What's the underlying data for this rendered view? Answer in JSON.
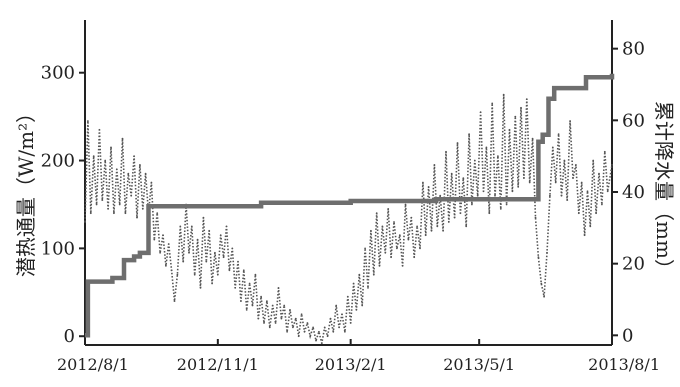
{
  "chart_data": {
    "type": "line",
    "xlabel": "",
    "x_ticks": [
      "2012/8/1",
      "2012/11/1",
      "2013/2/1",
      "2013/5/1",
      "2013/8/1"
    ],
    "x_range": [
      "2012-08-01",
      "2013-08-01"
    ],
    "ylabel_left": "潜热通量（W/m²）",
    "ylim_left": [
      -10,
      360
    ],
    "yticks_left": [
      0,
      100,
      200,
      300
    ],
    "ylabel_right": "累计降水量（mm）",
    "ylim_right": [
      -2.7,
      88
    ],
    "yticks_right": [
      0,
      20,
      40,
      60,
      80
    ],
    "colors": {
      "latent_heat": "#555555",
      "precip": "#6e6e6e",
      "axis": "#222222"
    },
    "series": [
      {
        "name": "",
        "axis": "left",
        "style": "dotted",
        "points": [
          [
            "2012-08-01",
            130
          ],
          [
            "2012-08-03",
            245
          ],
          [
            "2012-08-05",
            140
          ],
          [
            "2012-08-07",
            205
          ],
          [
            "2012-08-09",
            150
          ],
          [
            "2012-08-11",
            235
          ],
          [
            "2012-08-13",
            155
          ],
          [
            "2012-08-15",
            200
          ],
          [
            "2012-08-17",
            145
          ],
          [
            "2012-08-19",
            215
          ],
          [
            "2012-08-21",
            140
          ],
          [
            "2012-08-23",
            190
          ],
          [
            "2012-08-25",
            150
          ],
          [
            "2012-08-27",
            225
          ],
          [
            "2012-08-29",
            140
          ],
          [
            "2012-08-31",
            185
          ],
          [
            "2012-09-02",
            160
          ],
          [
            "2012-09-04",
            205
          ],
          [
            "2012-09-06",
            135
          ],
          [
            "2012-09-08",
            195
          ],
          [
            "2012-09-10",
            145
          ],
          [
            "2012-09-12",
            185
          ],
          [
            "2012-09-14",
            140
          ],
          [
            "2012-09-16",
            175
          ],
          [
            "2012-09-18",
            110
          ],
          [
            "2012-09-20",
            140
          ],
          [
            "2012-09-22",
            95
          ],
          [
            "2012-09-24",
            115
          ],
          [
            "2012-09-26",
            80
          ],
          [
            "2012-09-28",
            105
          ],
          [
            "2012-09-30",
            75
          ],
          [
            "2012-10-02",
            40
          ],
          [
            "2012-10-04",
            70
          ],
          [
            "2012-10-06",
            125
          ],
          [
            "2012-10-08",
            85
          ],
          [
            "2012-10-10",
            150
          ],
          [
            "2012-10-12",
            95
          ],
          [
            "2012-10-14",
            125
          ],
          [
            "2012-10-16",
            70
          ],
          [
            "2012-10-18",
            110
          ],
          [
            "2012-10-20",
            55
          ],
          [
            "2012-10-22",
            135
          ],
          [
            "2012-10-24",
            85
          ],
          [
            "2012-10-26",
            120
          ],
          [
            "2012-10-28",
            60
          ],
          [
            "2012-10-30",
            95
          ],
          [
            "2012-11-01",
            70
          ],
          [
            "2012-11-03",
            115
          ],
          [
            "2012-11-05",
            90
          ],
          [
            "2012-11-07",
            125
          ],
          [
            "2012-11-09",
            75
          ],
          [
            "2012-11-11",
            100
          ],
          [
            "2012-11-13",
            55
          ],
          [
            "2012-11-15",
            85
          ],
          [
            "2012-11-17",
            40
          ],
          [
            "2012-11-19",
            75
          ],
          [
            "2012-11-21",
            30
          ],
          [
            "2012-11-23",
            60
          ],
          [
            "2012-11-25",
            35
          ],
          [
            "2012-11-27",
            70
          ],
          [
            "2012-11-29",
            20
          ],
          [
            "2012-12-01",
            45
          ],
          [
            "2012-12-03",
            15
          ],
          [
            "2012-12-05",
            40
          ],
          [
            "2012-12-07",
            10
          ],
          [
            "2012-12-09",
            35
          ],
          [
            "2012-12-11",
            15
          ],
          [
            "2012-12-13",
            55
          ],
          [
            "2012-12-15",
            20
          ],
          [
            "2012-12-17",
            35
          ],
          [
            "2012-12-19",
            5
          ],
          [
            "2012-12-21",
            30
          ],
          [
            "2012-12-23",
            10
          ],
          [
            "2012-12-25",
            20
          ],
          [
            "2012-12-27",
            0
          ],
          [
            "2012-12-29",
            25
          ],
          [
            "2012-12-31",
            5
          ],
          [
            "2013-01-02",
            15
          ],
          [
            "2013-01-04",
            0
          ],
          [
            "2013-01-06",
            10
          ],
          [
            "2013-01-08",
            -5
          ],
          [
            "2013-01-10",
            5
          ],
          [
            "2013-01-12",
            -8
          ],
          [
            "2013-01-14",
            10
          ],
          [
            "2013-01-16",
            0
          ],
          [
            "2013-01-18",
            20
          ],
          [
            "2013-01-20",
            5
          ],
          [
            "2013-01-22",
            35
          ],
          [
            "2013-01-24",
            10
          ],
          [
            "2013-01-26",
            25
          ],
          [
            "2013-01-28",
            5
          ],
          [
            "2013-01-30",
            45
          ],
          [
            "2013-02-01",
            15
          ],
          [
            "2013-02-03",
            60
          ],
          [
            "2013-02-05",
            30
          ],
          [
            "2013-02-07",
            70
          ],
          [
            "2013-02-09",
            35
          ],
          [
            "2013-02-11",
            100
          ],
          [
            "2013-02-13",
            55
          ],
          [
            "2013-02-15",
            120
          ],
          [
            "2013-02-17",
            70
          ],
          [
            "2013-02-19",
            140
          ],
          [
            "2013-02-21",
            80
          ],
          [
            "2013-02-23",
            125
          ],
          [
            "2013-02-25",
            95
          ],
          [
            "2013-02-27",
            145
          ],
          [
            "2013-03-01",
            90
          ],
          [
            "2013-03-03",
            130
          ],
          [
            "2013-03-05",
            100
          ],
          [
            "2013-03-07",
            115
          ],
          [
            "2013-03-09",
            80
          ],
          [
            "2013-03-11",
            150
          ],
          [
            "2013-03-13",
            110
          ],
          [
            "2013-03-15",
            135
          ],
          [
            "2013-03-17",
            90
          ],
          [
            "2013-03-19",
            125
          ],
          [
            "2013-03-21",
            100
          ],
          [
            "2013-03-23",
            175
          ],
          [
            "2013-03-25",
            115
          ],
          [
            "2013-03-27",
            170
          ],
          [
            "2013-03-29",
            120
          ],
          [
            "2013-03-31",
            195
          ],
          [
            "2013-04-02",
            125
          ],
          [
            "2013-04-04",
            160
          ],
          [
            "2013-04-06",
            120
          ],
          [
            "2013-04-08",
            210
          ],
          [
            "2013-04-10",
            130
          ],
          [
            "2013-04-12",
            185
          ],
          [
            "2013-04-14",
            135
          ],
          [
            "2013-04-16",
            220
          ],
          [
            "2013-04-18",
            140
          ],
          [
            "2013-04-20",
            180
          ],
          [
            "2013-04-22",
            125
          ],
          [
            "2013-04-24",
            230
          ],
          [
            "2013-04-26",
            150
          ],
          [
            "2013-04-28",
            200
          ],
          [
            "2013-04-30",
            160
          ],
          [
            "2013-05-02",
            255
          ],
          [
            "2013-05-04",
            165
          ],
          [
            "2013-05-06",
            215
          ],
          [
            "2013-05-08",
            140
          ],
          [
            "2013-05-10",
            265
          ],
          [
            "2013-05-12",
            160
          ],
          [
            "2013-05-14",
            205
          ],
          [
            "2013-05-16",
            145
          ],
          [
            "2013-05-18",
            275
          ],
          [
            "2013-05-20",
            150
          ],
          [
            "2013-05-22",
            235
          ],
          [
            "2013-05-24",
            165
          ],
          [
            "2013-05-26",
            250
          ],
          [
            "2013-05-28",
            170
          ],
          [
            "2013-05-30",
            260
          ],
          [
            "2013-06-01",
            180
          ],
          [
            "2013-06-03",
            270
          ],
          [
            "2013-06-05",
            175
          ],
          [
            "2013-06-07",
            225
          ],
          [
            "2013-06-09",
            135
          ],
          [
            "2013-06-11",
            90
          ],
          [
            "2013-06-13",
            60
          ],
          [
            "2013-06-15",
            45
          ],
          [
            "2013-06-17",
            95
          ],
          [
            "2013-06-19",
            160
          ],
          [
            "2013-06-21",
            215
          ],
          [
            "2013-06-23",
            175
          ],
          [
            "2013-06-25",
            230
          ],
          [
            "2013-06-27",
            160
          ],
          [
            "2013-06-29",
            200
          ],
          [
            "2013-07-01",
            155
          ],
          [
            "2013-07-03",
            245
          ],
          [
            "2013-07-05",
            180
          ],
          [
            "2013-07-07",
            195
          ],
          [
            "2013-07-09",
            140
          ],
          [
            "2013-07-11",
            175
          ],
          [
            "2013-07-13",
            115
          ],
          [
            "2013-07-15",
            165
          ],
          [
            "2013-07-17",
            125
          ],
          [
            "2013-07-19",
            200
          ],
          [
            "2013-07-21",
            140
          ],
          [
            "2013-07-23",
            185
          ],
          [
            "2013-07-25",
            150
          ],
          [
            "2013-07-27",
            210
          ],
          [
            "2013-07-29",
            165
          ],
          [
            "2013-08-01",
            195
          ]
        ]
      },
      {
        "name": "",
        "axis": "right",
        "style": "step",
        "points": [
          [
            "2012-08-01",
            0
          ],
          [
            "2012-08-03",
            15
          ],
          [
            "2012-08-20",
            16
          ],
          [
            "2012-08-28",
            21
          ],
          [
            "2012-09-04",
            22
          ],
          [
            "2012-09-08",
            23
          ],
          [
            "2012-09-14",
            36
          ],
          [
            "2012-11-24",
            36
          ],
          [
            "2012-12-01",
            37
          ],
          [
            "2013-01-10",
            37
          ],
          [
            "2013-02-01",
            37.5
          ],
          [
            "2013-04-01",
            38
          ],
          [
            "2013-06-10",
            38
          ],
          [
            "2013-06-11",
            54
          ],
          [
            "2013-06-14",
            56
          ],
          [
            "2013-06-18",
            66
          ],
          [
            "2013-06-22",
            69
          ],
          [
            "2013-07-14",
            72
          ],
          [
            "2013-08-01",
            73
          ]
        ]
      }
    ]
  }
}
